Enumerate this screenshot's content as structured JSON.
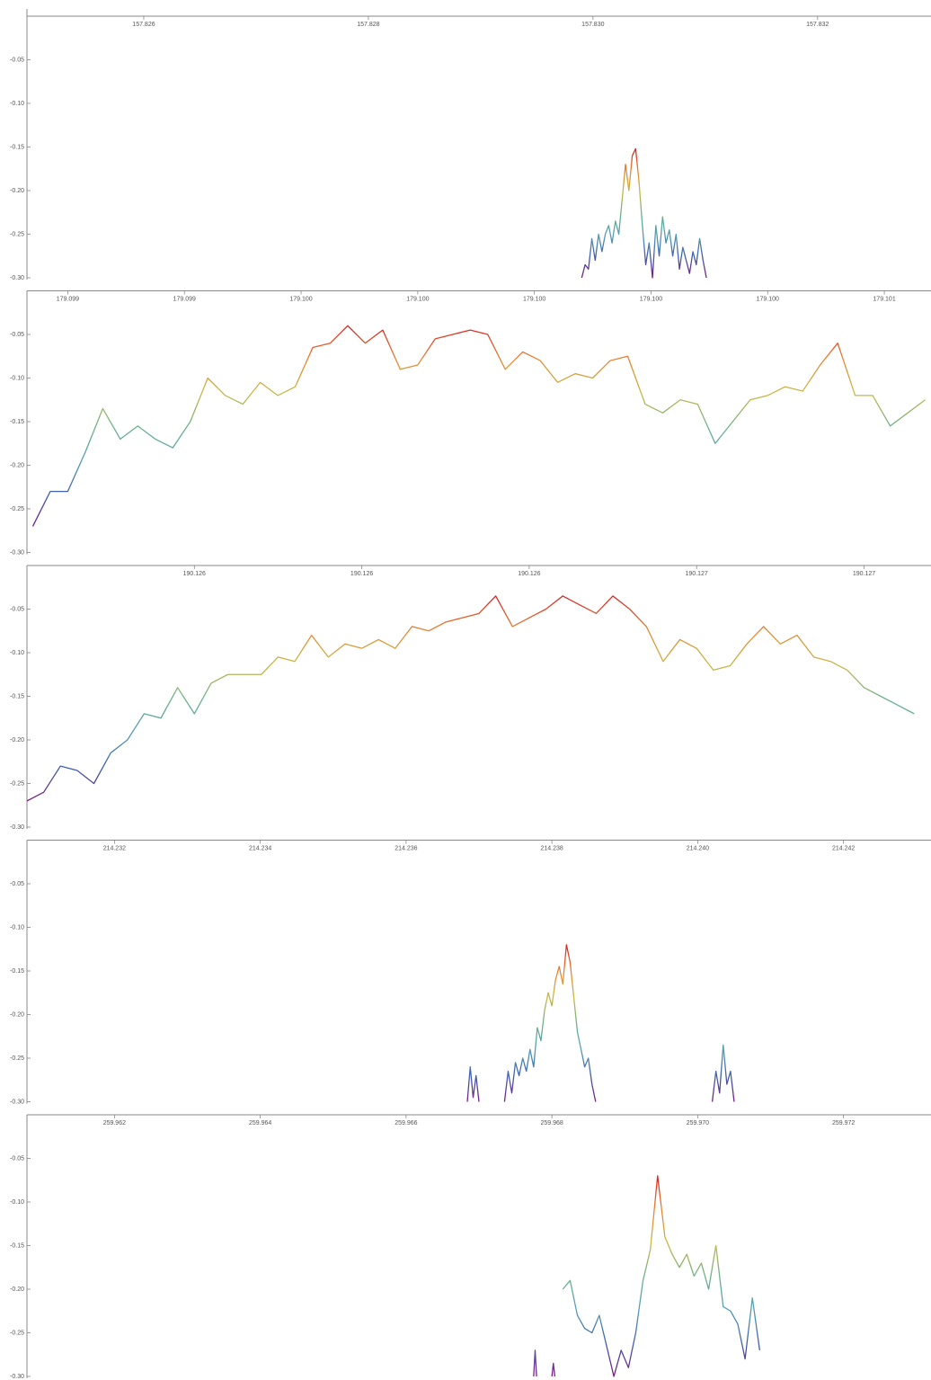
{
  "chart_data": [
    {
      "type": "line",
      "colormap": "rainbow",
      "xlim": [
        157.82496,
        157.83301
      ],
      "ylim": [
        -0.3,
        0
      ],
      "xticks": [
        157.826,
        157.828,
        {
          "value": 157.83,
          "label": "157.830"
        },
        157.832
      ],
      "yticks": [
        -0.05,
        {
          "value": -0.1,
          "label": "-0.10"
        },
        -0.15,
        {
          "value": -0.2,
          "label": "-0.20"
        },
        -0.25,
        {
          "value": -0.3,
          "label": "-0.30"
        }
      ],
      "x": [
        157.8299,
        157.82993,
        157.82996,
        157.82999,
        157.83002,
        157.83005,
        157.83008,
        157.83011,
        157.83014,
        157.83017,
        157.8302,
        157.83023,
        157.83026,
        157.83029,
        157.83032,
        157.83035,
        157.83038,
        157.83041,
        157.83044,
        157.83047,
        157.8305,
        157.83053,
        157.83056,
        157.83059,
        157.83062,
        157.83065,
        157.83068,
        157.83071,
        157.83074,
        157.83077,
        157.8308,
        157.83083,
        157.83086,
        157.83089,
        157.83092,
        157.83095,
        157.83098,
        157.83101
      ],
      "values": [
        -0.3,
        -0.285,
        -0.29,
        -0.255,
        -0.28,
        -0.25,
        -0.27,
        -0.25,
        -0.24,
        -0.26,
        -0.235,
        -0.25,
        -0.21,
        -0.17,
        -0.2,
        -0.16,
        -0.152,
        -0.19,
        -0.24,
        -0.285,
        -0.26,
        -0.3,
        -0.24,
        -0.275,
        -0.23,
        -0.26,
        -0.245,
        -0.275,
        -0.25,
        -0.29,
        -0.265,
        -0.28,
        -0.295,
        -0.27,
        -0.285,
        -0.255,
        -0.28,
        -0.3
      ]
    },
    {
      "type": "line",
      "colormap": "rainbow",
      "xlim": [
        179.09913,
        179.10068
      ],
      "ylim": [
        -0.3,
        0
      ],
      "xticks": [
        {
          "value": 179.0992,
          "label": "179.099"
        },
        {
          "value": 179.0994,
          "label": "179.099"
        },
        {
          "value": 179.0996,
          "label": "179.100"
        },
        {
          "value": 179.0998,
          "label": "179.100"
        },
        {
          "value": 179.1,
          "label": "179.100"
        },
        {
          "value": 179.1002,
          "label": "179.100"
        },
        {
          "value": 179.1004,
          "label": "179.100"
        },
        {
          "value": 179.1006,
          "label": "179.101"
        }
      ],
      "yticks": [
        -0.05,
        {
          "value": -0.1,
          "label": "-0.10"
        },
        -0.15,
        {
          "value": -0.2,
          "label": "-0.20"
        },
        -0.25,
        {
          "value": -0.3,
          "label": "-0.30"
        }
      ],
      "x": [
        179.09914,
        179.09917,
        179.0992,
        179.09923,
        179.09926,
        179.09929,
        179.09932,
        179.09935,
        179.09938,
        179.09941,
        179.09944,
        179.09947,
        179.0995,
        179.09953,
        179.09956,
        179.09959,
        179.09962,
        179.09965,
        179.09968,
        179.09971,
        179.09974,
        179.09977,
        179.0998,
        179.09983,
        179.09986,
        179.09989,
        179.09992,
        179.09995,
        179.09998,
        179.10001,
        179.10004,
        179.10007,
        179.1001,
        179.10013,
        179.10016,
        179.10019,
        179.10022,
        179.10025,
        179.10028,
        179.10031,
        179.10034,
        179.10037,
        179.1004,
        179.10043,
        179.10046,
        179.10049,
        179.10052,
        179.10055,
        179.10058,
        179.10061,
        179.10064,
        179.10067
      ],
      "values": [
        -0.27,
        -0.23,
        -0.23,
        -0.185,
        -0.135,
        -0.17,
        -0.155,
        -0.17,
        -0.18,
        -0.15,
        -0.1,
        -0.12,
        -0.13,
        -0.105,
        -0.12,
        -0.11,
        -0.065,
        -0.06,
        -0.04,
        -0.06,
        -0.045,
        -0.09,
        -0.085,
        -0.055,
        -0.05,
        -0.045,
        -0.05,
        -0.09,
        -0.07,
        -0.08,
        -0.105,
        -0.095,
        -0.1,
        -0.08,
        -0.075,
        -0.13,
        -0.14,
        -0.125,
        -0.13,
        -0.175,
        -0.15,
        -0.125,
        -0.12,
        -0.11,
        -0.115,
        -0.085,
        -0.06,
        -0.12,
        -0.12,
        -0.155,
        -0.14,
        -0.125
      ]
    },
    {
      "type": "line",
      "colormap": "rainbow",
      "xlim": [
        190.1258,
        190.12688
      ],
      "ylim": [
        -0.3,
        0
      ],
      "xticks": [
        190.126,
        {
          "value": 190.1262,
          "label": "190.126"
        },
        {
          "value": 190.1264,
          "label": "190.126"
        },
        {
          "value": 190.1266,
          "label": "190.127"
        },
        {
          "value": 190.1268,
          "label": "190.127"
        }
      ],
      "yticks": [
        -0.05,
        {
          "value": -0.1,
          "label": "-0.10"
        },
        -0.15,
        {
          "value": -0.2,
          "label": "-0.20"
        },
        -0.25,
        {
          "value": -0.3,
          "label": "-0.30"
        }
      ],
      "x": [
        190.1258,
        190.12582,
        190.12584,
        190.12586,
        190.12588,
        190.1259,
        190.12592,
        190.12594,
        190.12596,
        190.12598,
        190.126,
        190.12602,
        190.12604,
        190.12606,
        190.12608,
        190.1261,
        190.12612,
        190.12614,
        190.12616,
        190.12618,
        190.1262,
        190.12622,
        190.12624,
        190.12626,
        190.12628,
        190.1263,
        190.12632,
        190.12634,
        190.12636,
        190.12638,
        190.1264,
        190.12642,
        190.12644,
        190.12646,
        190.12648,
        190.1265,
        190.12652,
        190.12654,
        190.12656,
        190.12658,
        190.1266,
        190.12662,
        190.12664,
        190.12666,
        190.12668,
        190.1267,
        190.12672,
        190.12674,
        190.12676,
        190.12678,
        190.1268,
        190.12682,
        190.12684,
        190.12686
      ],
      "values": [
        -0.27,
        -0.26,
        -0.23,
        -0.235,
        -0.25,
        -0.215,
        -0.2,
        -0.17,
        -0.175,
        -0.14,
        -0.17,
        -0.135,
        -0.125,
        -0.125,
        -0.125,
        -0.105,
        -0.11,
        -0.08,
        -0.105,
        -0.09,
        -0.095,
        -0.085,
        -0.095,
        -0.07,
        -0.075,
        -0.065,
        -0.06,
        -0.055,
        -0.035,
        -0.07,
        -0.06,
        -0.05,
        -0.035,
        -0.045,
        -0.055,
        -0.035,
        -0.05,
        -0.07,
        -0.11,
        -0.085,
        -0.095,
        -0.12,
        -0.115,
        -0.09,
        -0.07,
        -0.09,
        -0.08,
        -0.105,
        -0.11,
        -0.12,
        -0.14,
        -0.15,
        -0.16,
        -0.17
      ]
    },
    {
      "type": "line",
      "colormap": "rainbow",
      "xlim": [
        214.2308,
        214.2432
      ],
      "ylim": [
        -0.3,
        0
      ],
      "xticks": [
        214.232,
        214.234,
        214.236,
        214.238,
        {
          "value": 214.24,
          "label": "214.240"
        },
        214.242
      ],
      "yticks": [
        -0.05,
        {
          "value": -0.1,
          "label": "-0.10"
        },
        -0.15,
        {
          "value": -0.2,
          "label": "-0.20"
        },
        -0.25,
        {
          "value": -0.3,
          "label": "-0.30"
        }
      ],
      "x": [
        214.23684,
        214.23688,
        214.23692,
        214.23696,
        214.237,
        214.2372,
        214.23735,
        214.2374,
        214.23745,
        214.2375,
        214.23755,
        214.2376,
        214.23765,
        214.2377,
        214.23775,
        214.2378,
        214.23785,
        214.2379,
        214.23795,
        214.238,
        214.23805,
        214.2381,
        214.23815,
        214.2382,
        214.23825,
        214.2383,
        214.23835,
        214.2384,
        214.23845,
        214.2385,
        214.23855,
        214.2386,
        214.2395,
        214.2402,
        214.24025,
        214.2403,
        214.24035,
        214.2404,
        214.24045,
        214.2405
      ],
      "values": [
        -0.3,
        -0.26,
        -0.295,
        -0.27,
        -0.3,
        null,
        -0.3,
        -0.265,
        -0.29,
        -0.255,
        -0.27,
        -0.25,
        -0.265,
        -0.24,
        -0.26,
        -0.215,
        -0.23,
        -0.195,
        -0.175,
        -0.19,
        -0.16,
        -0.145,
        -0.165,
        -0.12,
        -0.14,
        -0.18,
        -0.22,
        -0.24,
        -0.26,
        -0.25,
        -0.28,
        -0.3,
        null,
        -0.3,
        -0.265,
        -0.29,
        -0.235,
        -0.28,
        -0.265,
        -0.3
      ]
    },
    {
      "type": "line",
      "colormap": "rainbow",
      "xlim": [
        259.9608,
        259.9732
      ],
      "ylim": [
        -0.3,
        0
      ],
      "xticks": [
        259.962,
        259.964,
        259.966,
        259.968,
        {
          "value": 259.97,
          "label": "259.970"
        },
        259.972
      ],
      "yticks": [
        -0.05,
        {
          "value": -0.1,
          "label": "-0.10"
        },
        -0.15,
        {
          "value": -0.2,
          "label": "-0.20"
        },
        -0.25,
        {
          "value": -0.3,
          "label": "-0.30"
        }
      ],
      "x": [
        259.96775,
        259.96777,
        259.96779,
        259.9679,
        259.968,
        259.96802,
        259.96804,
        259.9681,
        259.96815,
        259.96825,
        259.96835,
        259.96845,
        259.96855,
        259.96865,
        259.96875,
        259.96885,
        259.96895,
        259.96905,
        259.96915,
        259.96925,
        259.96935,
        259.96945,
        259.96955,
        259.96965,
        259.96975,
        259.96985,
        259.96995,
        259.97005,
        259.97015,
        259.97025,
        259.97035,
        259.97045,
        259.97055,
        259.97065,
        259.97075,
        259.97085
      ],
      "values": [
        -0.3,
        -0.27,
        -0.3,
        null,
        -0.3,
        -0.285,
        -0.3,
        null,
        -0.2,
        -0.19,
        -0.23,
        -0.245,
        -0.25,
        -0.23,
        -0.265,
        -0.3,
        -0.27,
        -0.29,
        -0.25,
        -0.19,
        -0.155,
        -0.07,
        -0.14,
        -0.16,
        -0.175,
        -0.16,
        -0.185,
        -0.17,
        -0.2,
        -0.15,
        -0.22,
        -0.225,
        -0.24,
        -0.28,
        -0.21,
        -0.27
      ]
    }
  ]
}
